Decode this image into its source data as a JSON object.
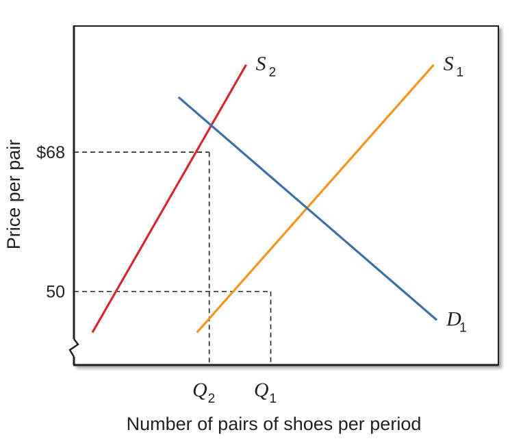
{
  "chart_data": {
    "type": "line",
    "xlabel": "Number of pairs of shoes per period",
    "ylabel": "Price per pair",
    "y_ticks": [
      {
        "value": 68,
        "label": "$68"
      },
      {
        "value": 50,
        "label": "50"
      }
    ],
    "x_ticks": [
      {
        "value": 2,
        "label": "Q",
        "sub": "2"
      },
      {
        "value": 3,
        "label": "Q",
        "sub": "1"
      }
    ],
    "series": [
      {
        "name": "S",
        "sub": "2",
        "color": "#d7282f",
        "points": [
          [
            0.1,
            44.7
          ],
          [
            2.6,
            79.3
          ]
        ]
      },
      {
        "name": "S",
        "sub": "1",
        "color": "#f7941d",
        "points": [
          [
            1.8,
            44.7
          ],
          [
            5.65,
            79.3
          ]
        ]
      },
      {
        "name": "D",
        "sub": "1",
        "color": "#3d6fa7",
        "points": [
          [
            1.5,
            75.1
          ],
          [
            5.7,
            46.3
          ]
        ]
      }
    ],
    "equilibria": [
      {
        "x": 2,
        "y": 68
      },
      {
        "x": 3,
        "y": 50
      }
    ],
    "xlim": [
      -0.2,
      6.7
    ],
    "ylim": [
      40.5,
      84.3
    ],
    "axis_break": true,
    "grid": false,
    "legend": "none"
  }
}
